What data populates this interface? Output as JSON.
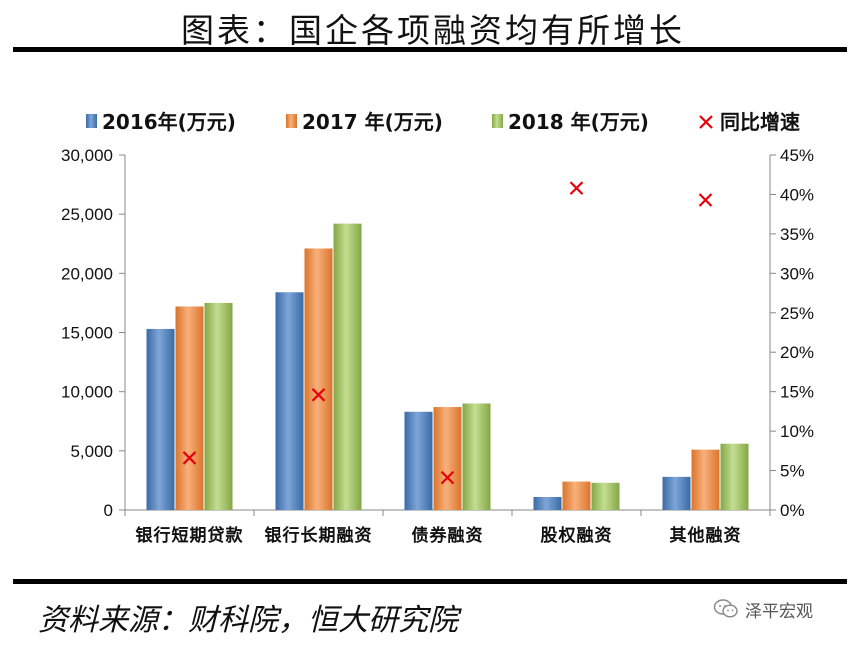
{
  "header": {
    "title": "图表：国企各项融资均有所增长"
  },
  "footer": {
    "source": "资料来源：财科院，恒大研究院",
    "watermark_text": "泽平宏观",
    "watermark_icon": "wechat-icon"
  },
  "colors": {
    "series_2016": "#4F81BD",
    "series_2017": "#F79646",
    "series_2018": "#9BBB59",
    "growth_marker": "#E8000B",
    "axis": "#888888"
  },
  "chart_data": {
    "type": "bar",
    "title": "图表：国企各项融资均有所增长",
    "categories": [
      "银行短期贷款",
      "银行长期融资",
      "债券融资",
      "股权融资",
      "其他融资"
    ],
    "series": [
      {
        "name": "2016年(万元)",
        "values": [
          15300,
          18400,
          8300,
          1100,
          2800
        ]
      },
      {
        "name": "2017 年(万元)",
        "values": [
          17200,
          22100,
          8700,
          2400,
          5100
        ]
      },
      {
        "name": "2018 年(万元)",
        "values": [
          17500,
          24200,
          9000,
          2300,
          5600
        ]
      }
    ],
    "secondary_series": {
      "name": "同比增速",
      "type": "scatter",
      "axis": "right",
      "values": [
        6.6,
        14.6,
        4.1,
        40.8,
        39.3
      ]
    },
    "ylim": [
      0,
      30000
    ],
    "yticks": [
      0,
      5000,
      10000,
      15000,
      20000,
      25000,
      30000
    ],
    "ytick_labels": [
      "0",
      "5,000",
      "10,000",
      "15,000",
      "20,000",
      "25,000",
      "30,000"
    ],
    "y2lim": [
      0,
      45
    ],
    "y2ticks": [
      0,
      5,
      10,
      15,
      20,
      25,
      30,
      35,
      40,
      45
    ],
    "y2tick_labels": [
      "0%",
      "5%",
      "10%",
      "15%",
      "20%",
      "25%",
      "30%",
      "35%",
      "40%",
      "45%"
    ],
    "legend_position": "top",
    "grid": false,
    "xlabel": "",
    "ylabel": ""
  }
}
